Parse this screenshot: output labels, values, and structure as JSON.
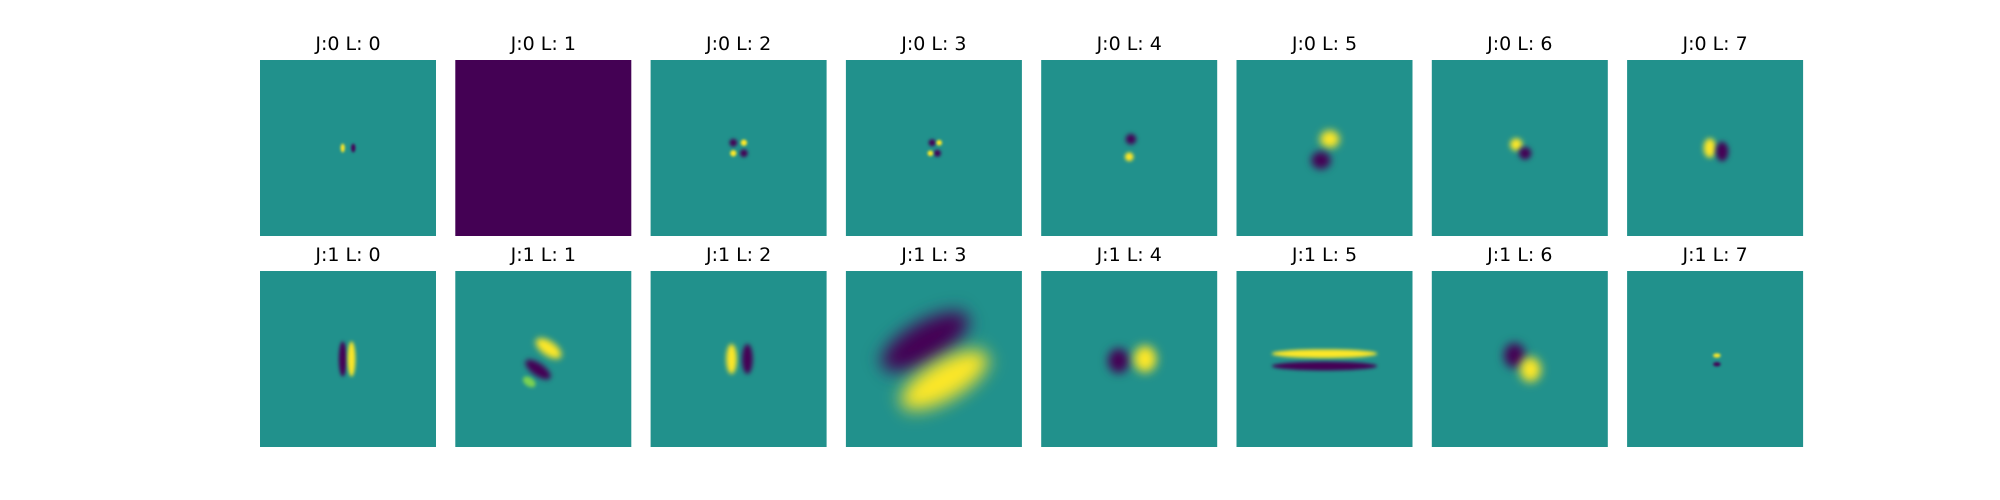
{
  "chart_data": {
    "type": "heatmap",
    "colormap": "viridis",
    "background_color": "#21918c",
    "rows": 2,
    "cols": 8,
    "panels": [
      {
        "title": "J:0 L: 0",
        "J": 0,
        "L": 0,
        "fill": "#21918c",
        "blobs": [
          {
            "cx": 0.47,
            "cy": 0.5,
            "rx": 0.012,
            "ry": 0.025,
            "color": "#fde725"
          },
          {
            "cx": 0.53,
            "cy": 0.5,
            "rx": 0.012,
            "ry": 0.025,
            "color": "#440154"
          }
        ]
      },
      {
        "title": "J:0 L: 1",
        "J": 0,
        "L": 1,
        "fill": "#440154",
        "blobs": []
      },
      {
        "title": "J:0 L: 2",
        "J": 0,
        "L": 2,
        "fill": "#21918c",
        "blobs": [
          {
            "cx": 0.47,
            "cy": 0.47,
            "rx": 0.022,
            "ry": 0.022,
            "color": "#440154"
          },
          {
            "cx": 0.53,
            "cy": 0.53,
            "rx": 0.022,
            "ry": 0.022,
            "color": "#440154"
          },
          {
            "cx": 0.53,
            "cy": 0.47,
            "rx": 0.018,
            "ry": 0.018,
            "color": "#fde725"
          },
          {
            "cx": 0.47,
            "cy": 0.53,
            "rx": 0.018,
            "ry": 0.018,
            "color": "#fde725"
          }
        ]
      },
      {
        "title": "J:0 L: 3",
        "J": 0,
        "L": 3,
        "fill": "#21918c",
        "blobs": [
          {
            "cx": 0.49,
            "cy": 0.47,
            "rx": 0.02,
            "ry": 0.02,
            "color": "#440154"
          },
          {
            "cx": 0.52,
            "cy": 0.53,
            "rx": 0.02,
            "ry": 0.02,
            "color": "#440154"
          },
          {
            "cx": 0.53,
            "cy": 0.47,
            "rx": 0.016,
            "ry": 0.016,
            "color": "#fde725"
          },
          {
            "cx": 0.48,
            "cy": 0.53,
            "rx": 0.016,
            "ry": 0.016,
            "color": "#fde725"
          }
        ]
      },
      {
        "title": "J:0 L: 4",
        "J": 0,
        "L": 4,
        "fill": "#21918c",
        "blobs": [
          {
            "cx": 0.51,
            "cy": 0.45,
            "rx": 0.03,
            "ry": 0.03,
            "color": "#440154"
          },
          {
            "cx": 0.5,
            "cy": 0.55,
            "rx": 0.025,
            "ry": 0.025,
            "color": "#fde725"
          }
        ]
      },
      {
        "title": "J:0 L: 5",
        "J": 0,
        "L": 5,
        "fill": "#21918c",
        "blobs": [
          {
            "cx": 0.53,
            "cy": 0.45,
            "rx": 0.055,
            "ry": 0.05,
            "color": "#fde725"
          },
          {
            "cx": 0.48,
            "cy": 0.57,
            "rx": 0.055,
            "ry": 0.05,
            "color": "#440154"
          }
        ]
      },
      {
        "title": "J:0 L: 6",
        "J": 0,
        "L": 6,
        "fill": "#21918c",
        "blobs": [
          {
            "cx": 0.48,
            "cy": 0.48,
            "rx": 0.035,
            "ry": 0.035,
            "color": "#fde725"
          },
          {
            "cx": 0.53,
            "cy": 0.53,
            "rx": 0.035,
            "ry": 0.035,
            "color": "#440154"
          }
        ]
      },
      {
        "title": "J:0 L: 7",
        "J": 0,
        "L": 7,
        "fill": "#21918c",
        "blobs": [
          {
            "cx": 0.47,
            "cy": 0.5,
            "rx": 0.035,
            "ry": 0.055,
            "color": "#fde725"
          },
          {
            "cx": 0.54,
            "cy": 0.52,
            "rx": 0.035,
            "ry": 0.055,
            "color": "#440154"
          }
        ]
      },
      {
        "title": "J:1 L: 0",
        "J": 1,
        "L": 0,
        "fill": "#21918c",
        "blobs": [
          {
            "cx": 0.47,
            "cy": 0.5,
            "rx": 0.022,
            "ry": 0.1,
            "color": "#440154"
          },
          {
            "cx": 0.52,
            "cy": 0.5,
            "rx": 0.022,
            "ry": 0.1,
            "color": "#fde725"
          }
        ]
      },
      {
        "title": "J:1 L: 1",
        "J": 1,
        "L": 1,
        "fill": "#21918c",
        "blobs": [
          {
            "cx": 0.53,
            "cy": 0.44,
            "rx": 0.085,
            "ry": 0.04,
            "rot": 35,
            "color": "#fde725"
          },
          {
            "cx": 0.47,
            "cy": 0.56,
            "rx": 0.085,
            "ry": 0.035,
            "rot": 35,
            "color": "#440154"
          },
          {
            "cx": 0.42,
            "cy": 0.63,
            "rx": 0.04,
            "ry": 0.025,
            "rot": 35,
            "color": "#7ad151"
          }
        ]
      },
      {
        "title": "J:1 L: 2",
        "J": 1,
        "L": 2,
        "fill": "#21918c",
        "blobs": [
          {
            "cx": 0.46,
            "cy": 0.5,
            "rx": 0.03,
            "ry": 0.085,
            "color": "#fde725"
          },
          {
            "cx": 0.55,
            "cy": 0.5,
            "rx": 0.03,
            "ry": 0.085,
            "color": "#440154"
          }
        ]
      },
      {
        "title": "J:1 L: 3",
        "J": 1,
        "L": 3,
        "fill": "#21918c",
        "blobs": [
          {
            "cx": 0.45,
            "cy": 0.4,
            "rx": 0.28,
            "ry": 0.11,
            "rot": -30,
            "color": "#440154"
          },
          {
            "cx": 0.56,
            "cy": 0.62,
            "rx": 0.28,
            "ry": 0.11,
            "rot": -30,
            "color": "#fde725"
          }
        ]
      },
      {
        "title": "J:1 L: 4",
        "J": 1,
        "L": 4,
        "fill": "#21918c",
        "blobs": [
          {
            "cx": 0.44,
            "cy": 0.51,
            "rx": 0.06,
            "ry": 0.07,
            "color": "#440154"
          },
          {
            "cx": 0.59,
            "cy": 0.5,
            "rx": 0.065,
            "ry": 0.075,
            "color": "#fde725"
          }
        ]
      },
      {
        "title": "J:1 L: 5",
        "J": 1,
        "L": 5,
        "fill": "#21918c",
        "blobs": [
          {
            "cx": 0.5,
            "cy": 0.47,
            "rx": 0.3,
            "ry": 0.025,
            "color": "#fde725"
          },
          {
            "cx": 0.5,
            "cy": 0.54,
            "rx": 0.3,
            "ry": 0.025,
            "color": "#440154"
          }
        ]
      },
      {
        "title": "J:1 L: 6",
        "J": 1,
        "L": 6,
        "fill": "#21918c",
        "blobs": [
          {
            "cx": 0.47,
            "cy": 0.48,
            "rx": 0.06,
            "ry": 0.07,
            "color": "#440154"
          },
          {
            "cx": 0.56,
            "cy": 0.56,
            "rx": 0.06,
            "ry": 0.07,
            "color": "#fde725"
          }
        ]
      },
      {
        "title": "J:1 L: 7",
        "J": 1,
        "L": 7,
        "fill": "#21918c",
        "blobs": [
          {
            "cx": 0.51,
            "cy": 0.48,
            "rx": 0.022,
            "ry": 0.012,
            "color": "#fde725"
          },
          {
            "cx": 0.51,
            "cy": 0.53,
            "rx": 0.022,
            "ry": 0.012,
            "color": "#440154"
          }
        ]
      }
    ]
  }
}
